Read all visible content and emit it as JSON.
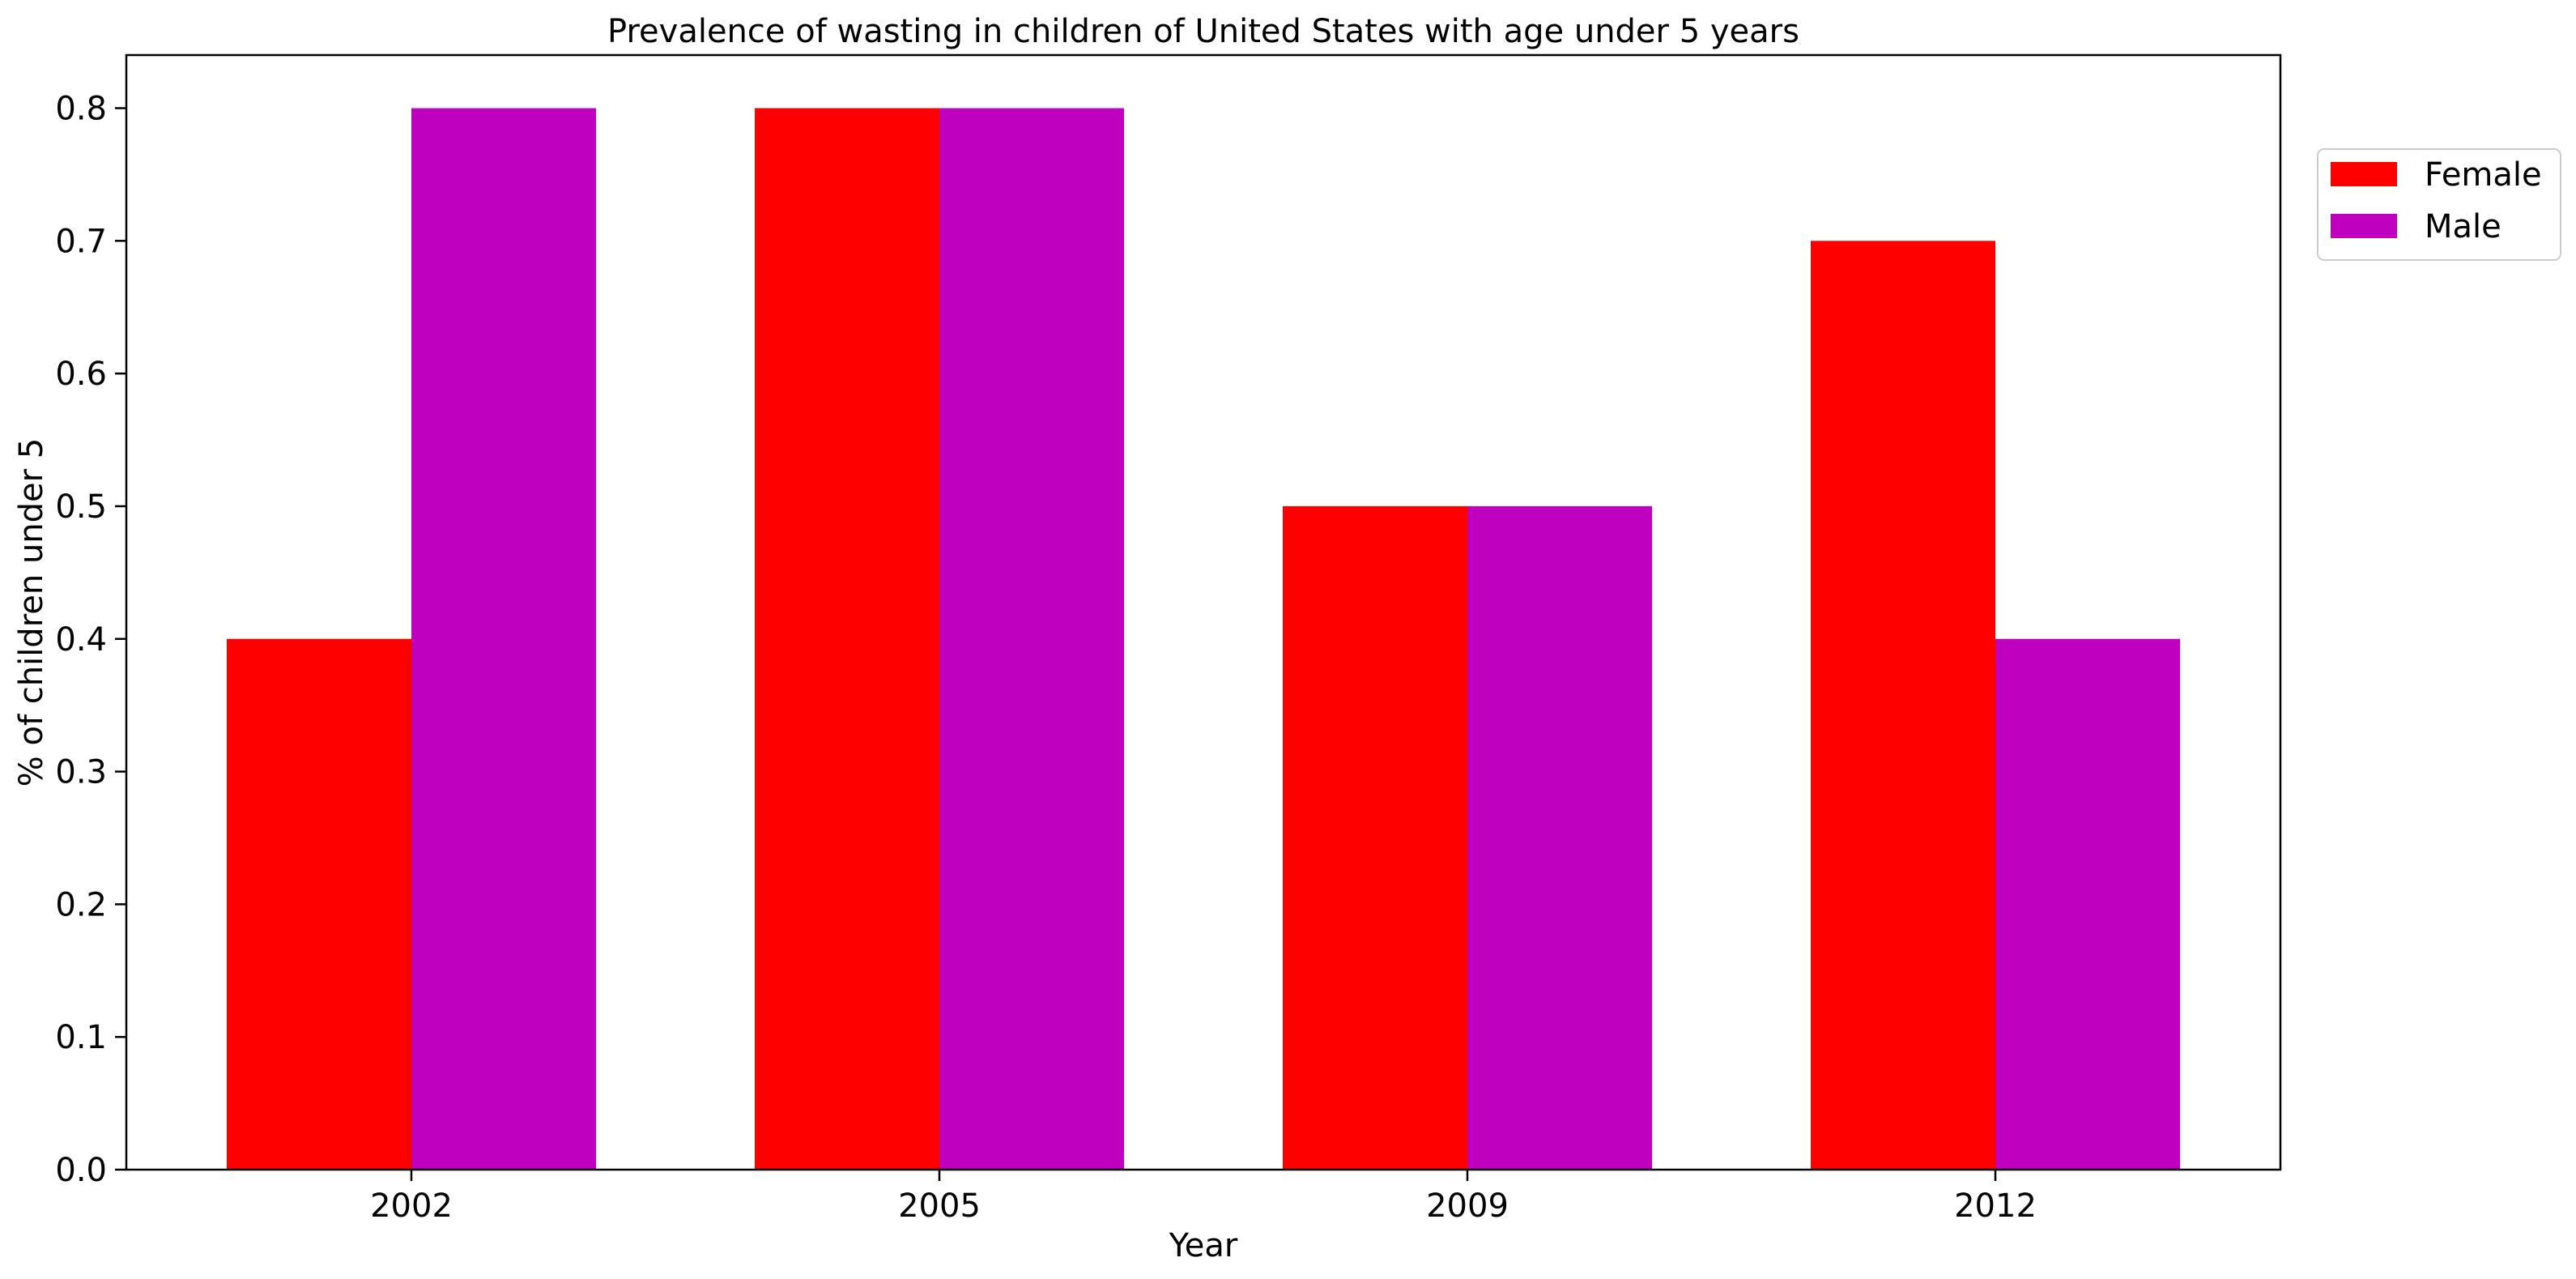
{
  "chart_data": {
    "type": "bar",
    "title": "Prevalence of wasting in children of United States with age under 5 years",
    "xlabel": "Year",
    "ylabel": "% of children under 5",
    "categories": [
      "2002",
      "2005",
      "2009",
      "2012"
    ],
    "series": [
      {
        "name": "Female",
        "color": "#ff0000",
        "values": [
          0.4,
          0.8,
          0.5,
          0.7
        ]
      },
      {
        "name": "Male",
        "color": "#bf00bf",
        "values": [
          0.8,
          0.8,
          0.5,
          0.4
        ]
      }
    ],
    "ylim": [
      0,
      0.84
    ],
    "yticks": [
      "0.0",
      "0.1",
      "0.2",
      "0.3",
      "0.4",
      "0.5",
      "0.6",
      "0.7",
      "0.8"
    ],
    "grid": false,
    "legend_position": "top-right, outside plot"
  }
}
